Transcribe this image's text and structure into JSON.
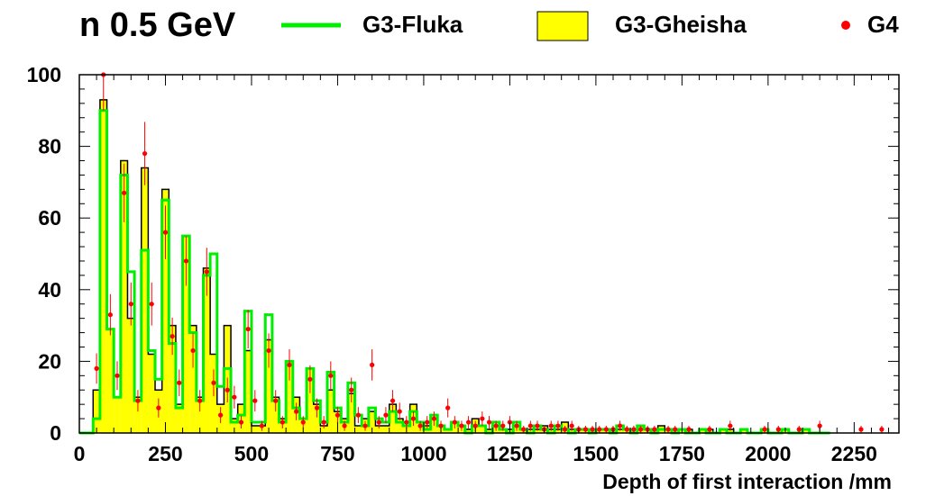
{
  "chart_data": {
    "type": "bar",
    "title": "n 0.5 GeV",
    "xlabel": "Depth of first interaction /mm",
    "ylabel": "",
    "xlim": [
      0,
      2380
    ],
    "ylim": [
      0,
      100
    ],
    "xticks": [
      0,
      250,
      500,
      750,
      1000,
      1250,
      1500,
      1750,
      2000,
      2250
    ],
    "yticks": [
      0,
      20,
      40,
      60,
      80,
      100
    ],
    "grid": false,
    "legend_position": "top",
    "bin_width": 20,
    "bin_start": 0,
    "series": [
      {
        "name": "G3-Gheisha",
        "style": "filled-histogram",
        "fill_color": "#ffff00",
        "line_color": "#000000",
        "values": [
          0,
          0,
          12,
          93,
          29,
          10,
          76,
          32,
          10,
          74,
          22,
          12,
          68,
          30,
          8,
          55,
          30,
          10,
          46,
          22,
          8,
          30,
          4,
          8,
          23,
          2,
          2,
          26,
          10,
          4,
          20,
          10,
          4,
          18,
          8,
          2,
          12,
          6,
          4,
          11,
          2,
          4,
          6,
          2,
          2,
          8,
          4,
          2,
          8,
          3,
          2,
          4,
          2,
          1,
          3,
          2,
          1,
          4,
          2,
          1,
          2,
          1,
          1,
          2,
          1,
          1,
          1,
          2,
          1,
          1,
          3,
          1,
          1,
          1,
          0,
          1,
          1,
          1,
          1,
          1,
          0,
          2,
          1,
          1,
          2,
          1,
          0,
          1,
          1,
          0,
          1,
          1,
          0,
          1,
          1,
          0,
          1,
          0,
          0,
          1,
          0,
          0,
          1,
          0,
          0,
          1,
          0,
          0,
          0
        ]
      },
      {
        "name": "G3-Fluka",
        "style": "line-histogram",
        "line_color": "#00ee00",
        "values": [
          0,
          0,
          4,
          90,
          29,
          10,
          72,
          45,
          9,
          51,
          23,
          15,
          65,
          25,
          7,
          55,
          28,
          9,
          44,
          50,
          13,
          18,
          3,
          5,
          34,
          3,
          3,
          33,
          9,
          3,
          20,
          7,
          4,
          18,
          9,
          3,
          17,
          7,
          3,
          14,
          5,
          2,
          7,
          4,
          3,
          6,
          3,
          2,
          6,
          3,
          1,
          5,
          2,
          1,
          3,
          2,
          0,
          2,
          2,
          0,
          3,
          1,
          0,
          3,
          1,
          0,
          2,
          1,
          0,
          2,
          1,
          0,
          1,
          1,
          0,
          1,
          1,
          0,
          2,
          1,
          0,
          2,
          1,
          0,
          1,
          1,
          0,
          1,
          0,
          0,
          1,
          0,
          0,
          1,
          0,
          0,
          1,
          0,
          0,
          1,
          0,
          0,
          1,
          0,
          0,
          1,
          0,
          0,
          0
        ]
      },
      {
        "name": "G4",
        "style": "markers-with-errors",
        "marker_color": "#ff0000",
        "error_color": "#ff0000",
        "points": [
          {
            "x": 50,
            "y": 18
          },
          {
            "x": 70,
            "y": 100
          },
          {
            "x": 90,
            "y": 33
          },
          {
            "x": 110,
            "y": 16
          },
          {
            "x": 130,
            "y": 67
          },
          {
            "x": 150,
            "y": 36
          },
          {
            "x": 170,
            "y": 9
          },
          {
            "x": 190,
            "y": 78
          },
          {
            "x": 210,
            "y": 36
          },
          {
            "x": 230,
            "y": 7
          },
          {
            "x": 250,
            "y": 56
          },
          {
            "x": 270,
            "y": 27
          },
          {
            "x": 290,
            "y": 14
          },
          {
            "x": 310,
            "y": 48
          },
          {
            "x": 330,
            "y": 23
          },
          {
            "x": 350,
            "y": 9
          },
          {
            "x": 370,
            "y": 45
          },
          {
            "x": 390,
            "y": 14
          },
          {
            "x": 410,
            "y": 5
          },
          {
            "x": 430,
            "y": 12
          },
          {
            "x": 450,
            "y": 10
          },
          {
            "x": 470,
            "y": 3
          },
          {
            "x": 490,
            "y": 29
          },
          {
            "x": 510,
            "y": 9
          },
          {
            "x": 530,
            "y": 2
          },
          {
            "x": 550,
            "y": 23
          },
          {
            "x": 570,
            "y": 9
          },
          {
            "x": 590,
            "y": 3
          },
          {
            "x": 610,
            "y": 19
          },
          {
            "x": 630,
            "y": 6
          },
          {
            "x": 650,
            "y": 3
          },
          {
            "x": 670,
            "y": 15
          },
          {
            "x": 690,
            "y": 7
          },
          {
            "x": 710,
            "y": 3
          },
          {
            "x": 730,
            "y": 16
          },
          {
            "x": 750,
            "y": 5
          },
          {
            "x": 770,
            "y": 2
          },
          {
            "x": 790,
            "y": 12
          },
          {
            "x": 810,
            "y": 5
          },
          {
            "x": 830,
            "y": 2
          },
          {
            "x": 850,
            "y": 19
          },
          {
            "x": 870,
            "y": 3
          },
          {
            "x": 890,
            "y": 5
          },
          {
            "x": 910,
            "y": 9
          },
          {
            "x": 930,
            "y": 6
          },
          {
            "x": 950,
            "y": 3
          },
          {
            "x": 970,
            "y": 4
          },
          {
            "x": 990,
            "y": 2
          },
          {
            "x": 1010,
            "y": 3
          },
          {
            "x": 1030,
            "y": 4
          },
          {
            "x": 1050,
            "y": 2
          },
          {
            "x": 1070,
            "y": 7
          },
          {
            "x": 1090,
            "y": 3
          },
          {
            "x": 1110,
            "y": 2
          },
          {
            "x": 1130,
            "y": 3
          },
          {
            "x": 1150,
            "y": 2
          },
          {
            "x": 1170,
            "y": 4
          },
          {
            "x": 1190,
            "y": 3
          },
          {
            "x": 1210,
            "y": 2
          },
          {
            "x": 1230,
            "y": 2
          },
          {
            "x": 1250,
            "y": 3
          },
          {
            "x": 1270,
            "y": 2
          },
          {
            "x": 1290,
            "y": 1
          },
          {
            "x": 1310,
            "y": 2
          },
          {
            "x": 1330,
            "y": 2
          },
          {
            "x": 1350,
            "y": 1
          },
          {
            "x": 1370,
            "y": 2
          },
          {
            "x": 1390,
            "y": 2
          },
          {
            "x": 1410,
            "y": 1
          },
          {
            "x": 1430,
            "y": 2
          },
          {
            "x": 1450,
            "y": 1
          },
          {
            "x": 1470,
            "y": 1
          },
          {
            "x": 1490,
            "y": 1
          },
          {
            "x": 1510,
            "y": 1
          },
          {
            "x": 1530,
            "y": 1
          },
          {
            "x": 1550,
            "y": 1
          },
          {
            "x": 1570,
            "y": 2
          },
          {
            "x": 1590,
            "y": 1
          },
          {
            "x": 1610,
            "y": 1
          },
          {
            "x": 1630,
            "y": 1
          },
          {
            "x": 1650,
            "y": 1
          },
          {
            "x": 1670,
            "y": 1
          },
          {
            "x": 1710,
            "y": 1
          },
          {
            "x": 1730,
            "y": 1
          },
          {
            "x": 1770,
            "y": 1
          },
          {
            "x": 1830,
            "y": 1
          },
          {
            "x": 1890,
            "y": 2
          },
          {
            "x": 1990,
            "y": 1
          },
          {
            "x": 2030,
            "y": 1
          },
          {
            "x": 2090,
            "y": 1
          },
          {
            "x": 2150,
            "y": 2
          },
          {
            "x": 2270,
            "y": 1
          },
          {
            "x": 2330,
            "y": 1
          }
        ]
      }
    ]
  }
}
